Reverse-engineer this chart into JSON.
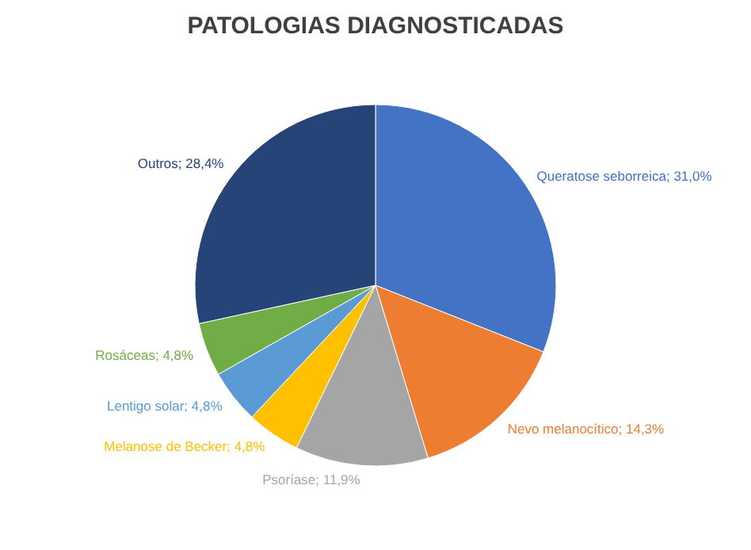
{
  "chart_data": {
    "type": "pie",
    "title": "PATOLOGIAS DIAGNOSTICADAS",
    "categories": [
      "Queratose seborreica",
      "Nevo melanocítico",
      "Psoríase",
      "Melanose de Becker",
      "Lentigo solar",
      "Rosáceas",
      "Outros"
    ],
    "values": [
      31.0,
      14.3,
      11.9,
      4.8,
      4.8,
      4.8,
      28.4
    ],
    "value_labels": [
      "31,0%",
      "14,3%",
      "11,9%",
      "4,8%",
      "4,8%",
      "4,8%",
      "28,4%"
    ],
    "colors": [
      "#4472c4",
      "#ed7d31",
      "#a5a5a5",
      "#ffc000",
      "#5b9bd5",
      "#70ad47",
      "#264478"
    ],
    "legend": false
  }
}
